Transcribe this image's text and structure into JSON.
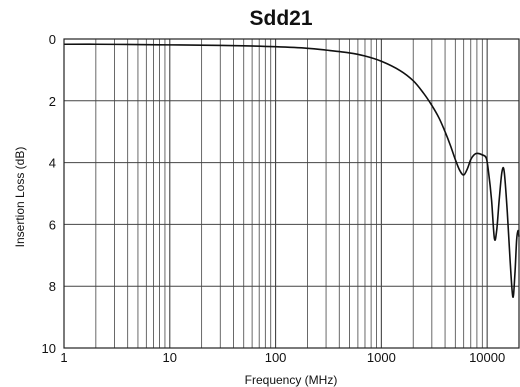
{
  "chart_data": {
    "type": "line",
    "title": "Sdd21",
    "xlabel": "Frequency (MHz)",
    "ylabel": "Insertion Loss (dB)",
    "x_scale": "log",
    "xlim": [
      1,
      20000
    ],
    "ylim": [
      0,
      10
    ],
    "y_inverted": true,
    "grid": true,
    "x_tick_labels": [
      "1",
      "10",
      "100",
      "1000",
      "10000"
    ],
    "x_tick_values": [
      1,
      10,
      100,
      1000,
      10000
    ],
    "y_tick_labels": [
      "0",
      "2",
      "4",
      "6",
      "8",
      "10"
    ],
    "y_tick_values": [
      0,
      2,
      4,
      6,
      8,
      10
    ],
    "series": [
      {
        "color": "#111111",
        "points": [
          [
            1,
            0.17
          ],
          [
            2,
            0.17
          ],
          [
            5,
            0.18
          ],
          [
            10,
            0.19
          ],
          [
            20,
            0.2
          ],
          [
            50,
            0.22
          ],
          [
            100,
            0.25
          ],
          [
            200,
            0.3
          ],
          [
            300,
            0.36
          ],
          [
            500,
            0.45
          ],
          [
            700,
            0.55
          ],
          [
            1000,
            0.72
          ],
          [
            1500,
            1.02
          ],
          [
            2000,
            1.35
          ],
          [
            2500,
            1.75
          ],
          [
            3000,
            2.15
          ],
          [
            3500,
            2.55
          ],
          [
            4000,
            3.0
          ],
          [
            4500,
            3.45
          ],
          [
            5000,
            3.9
          ],
          [
            5500,
            4.25
          ],
          [
            6000,
            4.4
          ],
          [
            6500,
            4.2
          ],
          [
            7000,
            3.9
          ],
          [
            7500,
            3.75
          ],
          [
            8000,
            3.7
          ],
          [
            9000,
            3.75
          ],
          [
            9800,
            3.85
          ],
          [
            10300,
            4.3
          ],
          [
            11000,
            5.2
          ],
          [
            11700,
            6.45
          ],
          [
            12300,
            6.2
          ],
          [
            13000,
            5.2
          ],
          [
            13800,
            4.3
          ],
          [
            14500,
            4.3
          ],
          [
            15500,
            5.6
          ],
          [
            16500,
            7.2
          ],
          [
            17500,
            8.35
          ],
          [
            18300,
            7.6
          ],
          [
            19000,
            6.5
          ],
          [
            19600,
            6.2
          ],
          [
            20000,
            6.4
          ]
        ]
      }
    ]
  }
}
